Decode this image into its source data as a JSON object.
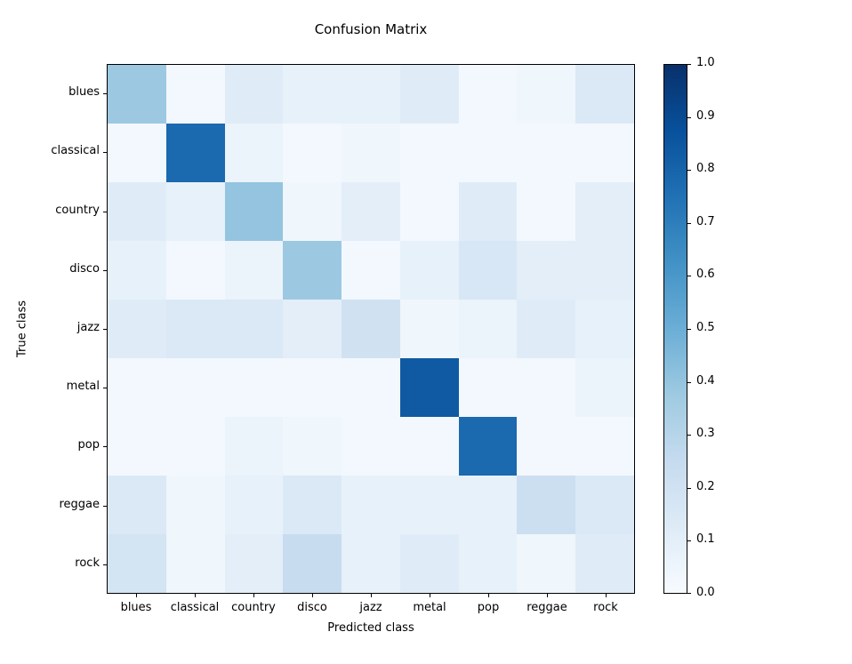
{
  "chart_data": {
    "type": "heatmap",
    "title": "Confusion Matrix",
    "xlabel": "Predicted class",
    "ylabel": "True class",
    "categories": [
      "blues",
      "classical",
      "country",
      "disco",
      "jazz",
      "metal",
      "pop",
      "reggae",
      "rock"
    ],
    "matrix": [
      [
        0.38,
        0.02,
        0.12,
        0.08,
        0.08,
        0.12,
        0.02,
        0.04,
        0.14
      ],
      [
        0.02,
        0.78,
        0.06,
        0.02,
        0.04,
        0.02,
        0.02,
        0.02,
        0.02
      ],
      [
        0.12,
        0.08,
        0.4,
        0.04,
        0.1,
        0.02,
        0.12,
        0.02,
        0.1
      ],
      [
        0.08,
        0.02,
        0.06,
        0.38,
        0.02,
        0.08,
        0.16,
        0.1,
        0.1
      ],
      [
        0.12,
        0.14,
        0.14,
        0.1,
        0.2,
        0.04,
        0.06,
        0.12,
        0.08
      ],
      [
        0.02,
        0.02,
        0.02,
        0.02,
        0.02,
        0.84,
        0.02,
        0.02,
        0.06
      ],
      [
        0.02,
        0.02,
        0.06,
        0.04,
        0.02,
        0.02,
        0.78,
        0.02,
        0.02
      ],
      [
        0.14,
        0.04,
        0.08,
        0.14,
        0.08,
        0.08,
        0.08,
        0.22,
        0.14
      ],
      [
        0.18,
        0.04,
        0.1,
        0.24,
        0.08,
        0.12,
        0.08,
        0.04,
        0.12
      ]
    ],
    "value_range": [
      0.0,
      1.0
    ],
    "colorbar_ticks": [
      "0.0",
      "0.1",
      "0.2",
      "0.3",
      "0.4",
      "0.5",
      "0.6",
      "0.7",
      "0.8",
      "0.9",
      "1.0"
    ],
    "colormap": {
      "name": "Blues",
      "stops": [
        {
          "pos": 0.0,
          "color": "#f7fbff"
        },
        {
          "pos": 0.125,
          "color": "#deebf7"
        },
        {
          "pos": 0.25,
          "color": "#c6dbef"
        },
        {
          "pos": 0.375,
          "color": "#9ecae1"
        },
        {
          "pos": 0.5,
          "color": "#6baed6"
        },
        {
          "pos": 0.625,
          "color": "#4292c6"
        },
        {
          "pos": 0.75,
          "color": "#2171b5"
        },
        {
          "pos": 0.875,
          "color": "#08519c"
        },
        {
          "pos": 1.0,
          "color": "#08306b"
        }
      ]
    },
    "legend_position": "colorbar-right",
    "grid": false
  }
}
